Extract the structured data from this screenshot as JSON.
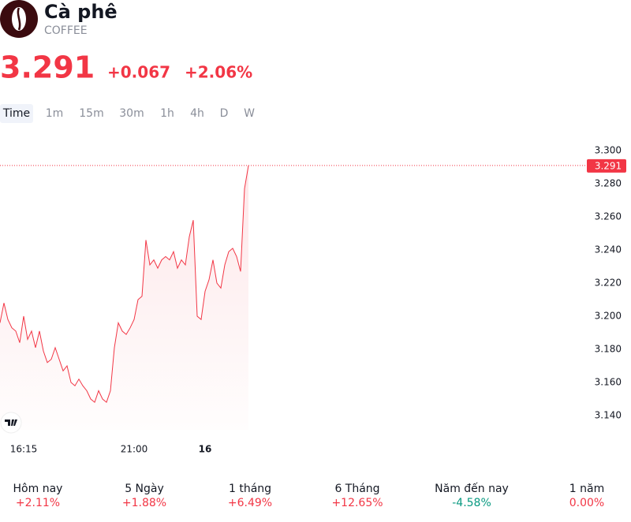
{
  "header": {
    "title": "Cà phê",
    "symbol": "COFFEE"
  },
  "quote": {
    "price": "3.291",
    "change": "+0.067",
    "change_percent": "+2.06%"
  },
  "timeframes": [
    "Time",
    "1m",
    "15m",
    "30m",
    "1h",
    "4h",
    "D",
    "W"
  ],
  "chart_data": {
    "type": "line",
    "categories": [
      null,
      null,
      null,
      null,
      null,
      null,
      "16:15",
      null,
      null,
      null,
      null,
      null,
      null,
      null,
      null,
      null,
      null,
      null,
      null,
      null,
      null,
      null,
      null,
      null,
      null,
      null,
      null,
      null,
      null,
      null,
      null,
      null,
      null,
      null,
      "21:00",
      null,
      null,
      null,
      null,
      null,
      null,
      null,
      null,
      null,
      null,
      null,
      null,
      null,
      null,
      null,
      null,
      null,
      "16",
      null,
      null,
      null,
      null,
      null,
      null,
      null,
      null,
      null,
      null,
      null
    ],
    "series": [
      {
        "name": "COFFEE",
        "color": "#f23645",
        "values": [
          3.196,
          3.208,
          3.198,
          3.193,
          3.191,
          3.184,
          3.2,
          3.186,
          3.191,
          3.181,
          3.191,
          3.179,
          3.172,
          3.174,
          3.181,
          3.174,
          3.167,
          3.17,
          3.16,
          3.158,
          3.162,
          3.158,
          3.155,
          3.15,
          3.148,
          3.155,
          3.15,
          3.148,
          3.155,
          3.181,
          3.196,
          3.191,
          3.189,
          3.193,
          3.198,
          3.21,
          3.212,
          3.246,
          3.231,
          3.234,
          3.229,
          3.234,
          3.236,
          3.234,
          3.239,
          3.229,
          3.234,
          3.231,
          3.248,
          3.258,
          3.2,
          3.198,
          3.215,
          3.222,
          3.234,
          3.22,
          3.217,
          3.231,
          3.239,
          3.241,
          3.236,
          3.227,
          3.277,
          3.291
        ]
      }
    ],
    "last_price": 3.291,
    "ylim": [
      3.13,
      3.31
    ],
    "yticks": [
      {
        "value": 3.14,
        "label": "3.140"
      },
      {
        "value": 3.16,
        "label": "3.160"
      },
      {
        "value": 3.18,
        "label": "3.180"
      },
      {
        "value": 3.2,
        "label": "3.200"
      },
      {
        "value": 3.22,
        "label": "3.220"
      },
      {
        "value": 3.24,
        "label": "3.240"
      },
      {
        "value": 3.26,
        "label": "3.260"
      },
      {
        "value": 3.28,
        "label": "3.280"
      },
      {
        "value": 3.3,
        "label": "3.300"
      }
    ]
  },
  "performance": [
    {
      "label": "Hôm nay",
      "value": "+2.11%",
      "color": "#f23645"
    },
    {
      "label": "5 Ngày",
      "value": "+1.88%",
      "color": "#f23645"
    },
    {
      "label": "1 tháng",
      "value": "+6.49%",
      "color": "#f23645"
    },
    {
      "label": "6 Tháng",
      "value": "+12.65%",
      "color": "#f23645"
    },
    {
      "label": "Năm đến nay",
      "value": "-4.58%",
      "color": "#089981"
    },
    {
      "label": "1 năm",
      "value": "0.00%",
      "color": "#f23645"
    }
  ]
}
